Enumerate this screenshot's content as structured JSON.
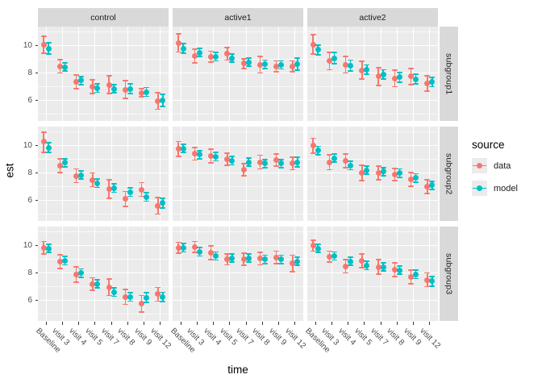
{
  "chart_data": {
    "type": "pointrange",
    "xlabel": "time",
    "ylabel": "est",
    "x_categories": [
      "Baseline",
      "visit 3",
      "visit 4",
      "visit 5",
      "visit 7",
      "visit 8",
      "visit 9",
      "visit 12"
    ],
    "y_ticks": [
      6,
      8,
      10
    ],
    "y_minor_ticks": [
      5,
      7,
      9,
      11
    ],
    "ylim": [
      4.5,
      11.4
    ],
    "facet_columns": [
      "control",
      "active1",
      "active2"
    ],
    "facet_rows": [
      "subgroup1",
      "subgroup2",
      "subgroup3"
    ],
    "panel_background": "#EBEBEB",
    "strip_background": "#D9D9D9",
    "gridline_color": "#FFFFFF",
    "legend": {
      "title": "source",
      "position": "right",
      "entries": [
        {
          "label": "data",
          "color": "#F8766D"
        },
        {
          "label": "model",
          "color": "#00BFC4"
        }
      ]
    },
    "panels": [
      {
        "row": "subgroup1",
        "col": "control",
        "data": {
          "est": [
            10.1,
            8.5,
            7.35,
            7.0,
            7.15,
            6.8,
            6.55,
            5.95
          ],
          "lo": [
            9.45,
            8.0,
            6.85,
            6.5,
            6.5,
            6.15,
            6.25,
            5.35
          ],
          "hi": [
            10.7,
            9.0,
            7.85,
            7.5,
            7.8,
            7.45,
            6.85,
            6.55
          ]
        },
        "model": {
          "est": [
            9.8,
            8.45,
            7.45,
            6.9,
            6.85,
            6.85,
            6.6,
            6.0
          ],
          "lo": [
            9.4,
            8.15,
            7.15,
            6.6,
            6.55,
            6.5,
            6.3,
            5.55
          ],
          "hi": [
            10.2,
            8.75,
            7.75,
            7.2,
            7.15,
            7.2,
            6.95,
            6.45
          ]
        }
      },
      {
        "row": "subgroup1",
        "col": "active1",
        "data": {
          "est": [
            10.2,
            9.25,
            9.2,
            9.4,
            8.7,
            8.6,
            8.5,
            8.5
          ],
          "lo": [
            9.55,
            8.75,
            8.8,
            8.95,
            8.35,
            8.0,
            8.1,
            8.1
          ],
          "hi": [
            10.85,
            9.75,
            9.6,
            9.85,
            9.05,
            9.2,
            8.9,
            8.9
          ]
        },
        "model": {
          "est": [
            9.8,
            9.5,
            9.2,
            9.1,
            8.8,
            8.65,
            8.6,
            8.65
          ],
          "lo": [
            9.45,
            9.2,
            8.9,
            8.8,
            8.5,
            8.35,
            8.3,
            8.2
          ],
          "hi": [
            10.15,
            9.8,
            9.5,
            9.4,
            9.1,
            8.95,
            8.9,
            9.1
          ]
        }
      },
      {
        "row": "subgroup1",
        "col": "active2",
        "data": {
          "est": [
            10.1,
            8.9,
            8.6,
            8.2,
            7.75,
            7.6,
            7.75,
            7.25
          ],
          "lo": [
            9.4,
            8.25,
            8.0,
            7.55,
            7.1,
            7.0,
            7.15,
            6.7
          ],
          "hi": [
            10.8,
            9.5,
            9.2,
            8.85,
            8.4,
            8.2,
            8.35,
            7.8
          ]
        },
        "model": {
          "est": [
            9.7,
            9.1,
            8.55,
            8.25,
            7.9,
            7.7,
            7.55,
            7.35
          ],
          "lo": [
            9.35,
            8.7,
            8.15,
            7.9,
            7.55,
            7.35,
            7.2,
            7.0
          ],
          "hi": [
            10.05,
            9.5,
            8.95,
            8.6,
            8.25,
            8.05,
            7.9,
            7.7
          ]
        }
      },
      {
        "row": "subgroup2",
        "col": "control",
        "data": {
          "est": [
            10.3,
            8.55,
            7.8,
            7.5,
            6.85,
            6.1,
            6.8,
            5.6
          ],
          "lo": [
            9.5,
            8.05,
            7.3,
            7.0,
            6.15,
            5.55,
            6.3,
            5.0
          ],
          "hi": [
            11.0,
            9.05,
            8.3,
            8.0,
            7.5,
            6.65,
            7.3,
            6.2
          ]
        },
        "model": {
          "est": [
            9.85,
            8.75,
            7.85,
            7.25,
            6.9,
            6.6,
            6.25,
            5.8
          ],
          "lo": [
            9.5,
            8.45,
            7.55,
            6.95,
            6.6,
            6.3,
            5.95,
            5.45
          ],
          "hi": [
            10.2,
            9.05,
            8.15,
            7.55,
            7.2,
            6.9,
            6.55,
            6.15
          ]
        }
      },
      {
        "row": "subgroup2",
        "col": "active1",
        "data": {
          "est": [
            9.75,
            9.4,
            9.25,
            9.0,
            8.25,
            8.8,
            8.95,
            8.7
          ],
          "lo": [
            9.2,
            8.95,
            8.75,
            8.55,
            7.8,
            8.3,
            8.5,
            8.25
          ],
          "hi": [
            10.3,
            9.85,
            9.75,
            9.45,
            8.7,
            9.3,
            9.4,
            9.15
          ]
        },
        "model": {
          "est": [
            9.8,
            9.35,
            9.2,
            8.9,
            8.8,
            8.7,
            8.7,
            8.8
          ],
          "lo": [
            9.5,
            9.05,
            8.9,
            8.6,
            8.5,
            8.4,
            8.4,
            8.45
          ],
          "hi": [
            10.1,
            9.65,
            9.5,
            9.2,
            9.1,
            9.0,
            9.0,
            9.15
          ]
        }
      },
      {
        "row": "subgroup2",
        "col": "active2",
        "data": {
          "est": [
            10.0,
            8.8,
            8.9,
            8.0,
            8.0,
            7.9,
            7.55,
            7.0
          ],
          "lo": [
            9.45,
            8.25,
            8.4,
            7.45,
            7.5,
            7.45,
            7.05,
            6.5
          ],
          "hi": [
            10.55,
            9.35,
            9.4,
            8.55,
            8.5,
            8.35,
            8.05,
            7.5
          ]
        },
        "model": {
          "est": [
            9.65,
            9.1,
            8.55,
            8.2,
            8.1,
            8.0,
            7.65,
            7.1
          ],
          "lo": [
            9.35,
            8.8,
            8.25,
            7.9,
            7.8,
            7.7,
            7.35,
            6.8
          ],
          "hi": [
            9.95,
            9.4,
            8.85,
            8.5,
            8.4,
            8.3,
            7.95,
            7.4
          ]
        }
      },
      {
        "row": "subgroup3",
        "col": "control",
        "data": {
          "est": [
            9.85,
            8.85,
            7.9,
            7.2,
            6.95,
            6.25,
            5.75,
            6.45
          ],
          "lo": [
            9.4,
            8.35,
            7.35,
            6.75,
            6.35,
            5.7,
            5.15,
            5.95
          ],
          "hi": [
            10.3,
            9.35,
            8.45,
            7.65,
            7.55,
            6.8,
            6.35,
            6.95
          ]
        },
        "model": {
          "est": [
            9.8,
            8.9,
            8.0,
            7.2,
            6.6,
            6.25,
            6.2,
            6.25
          ],
          "lo": [
            9.5,
            8.6,
            7.7,
            6.9,
            6.3,
            5.95,
            5.85,
            5.9
          ],
          "hi": [
            10.1,
            9.2,
            8.3,
            7.5,
            6.9,
            6.55,
            6.55,
            6.6
          ]
        }
      },
      {
        "row": "subgroup3",
        "col": "active1",
        "data": {
          "est": [
            9.85,
            9.9,
            9.5,
            9.0,
            9.0,
            9.05,
            9.15,
            8.7
          ],
          "lo": [
            9.45,
            9.5,
            9.0,
            8.6,
            8.55,
            8.6,
            8.7,
            8.1
          ],
          "hi": [
            10.25,
            10.3,
            10.0,
            9.4,
            9.45,
            9.5,
            9.6,
            9.3
          ]
        },
        "model": {
          "est": [
            9.85,
            9.55,
            9.25,
            9.1,
            9.1,
            9.0,
            9.0,
            8.85
          ],
          "lo": [
            9.55,
            9.25,
            8.95,
            8.8,
            8.8,
            8.7,
            8.7,
            8.55
          ],
          "hi": [
            10.15,
            9.85,
            9.55,
            9.4,
            9.4,
            9.3,
            9.3,
            9.15
          ]
        }
      },
      {
        "row": "subgroup3",
        "col": "active2",
        "data": {
          "est": [
            10.0,
            9.2,
            8.5,
            8.9,
            8.45,
            8.25,
            7.7,
            7.5
          ],
          "lo": [
            9.6,
            8.8,
            8.0,
            8.4,
            7.9,
            7.75,
            7.2,
            7.0
          ],
          "hi": [
            10.4,
            9.6,
            9.0,
            9.4,
            9.0,
            8.75,
            8.2,
            8.0
          ]
        },
        "model": {
          "est": [
            9.8,
            9.25,
            8.85,
            8.55,
            8.45,
            8.2,
            7.9,
            7.4
          ],
          "lo": [
            9.5,
            8.95,
            8.55,
            8.25,
            8.15,
            7.9,
            7.6,
            7.05
          ],
          "hi": [
            10.1,
            9.55,
            9.15,
            8.85,
            8.75,
            8.5,
            8.2,
            7.75
          ]
        }
      }
    ]
  }
}
